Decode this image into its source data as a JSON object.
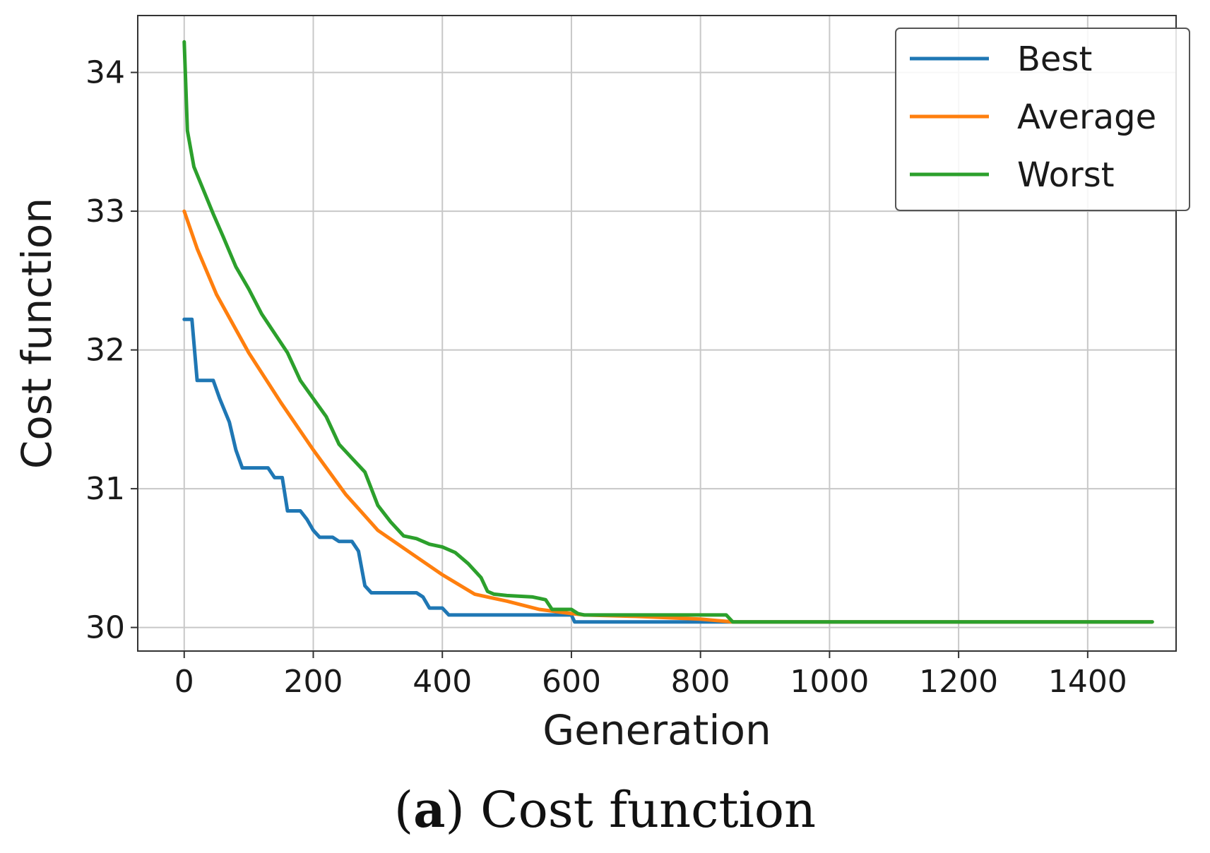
{
  "caption": {
    "open_paren": "(",
    "letter": "a",
    "rest": ") Cost function"
  },
  "chart_data": {
    "type": "line",
    "title": "",
    "xlabel": "Generation",
    "ylabel": "Cost function",
    "xlim": [
      -72,
      1537
    ],
    "ylim": [
      29.83,
      34.41
    ],
    "xticks": [
      0,
      200,
      400,
      600,
      800,
      1000,
      1200,
      1400
    ],
    "yticks": [
      30,
      31,
      32,
      33,
      34
    ],
    "grid": true,
    "legend_position": "top-right",
    "series": [
      {
        "name": "Best",
        "color": "#1f77b4",
        "x": [
          0,
          12,
          20,
          45,
          55,
          70,
          80,
          90,
          130,
          140,
          152,
          160,
          180,
          190,
          200,
          210,
          230,
          240,
          260,
          270,
          280,
          290,
          360,
          370,
          380,
          400,
          410,
          600,
          605,
          850,
          1500
        ],
        "y": [
          32.22,
          32.22,
          31.78,
          31.78,
          31.65,
          31.48,
          31.28,
          31.15,
          31.15,
          31.08,
          31.08,
          30.84,
          30.84,
          30.78,
          30.7,
          30.65,
          30.65,
          30.62,
          30.62,
          30.55,
          30.3,
          30.25,
          30.25,
          30.22,
          30.14,
          30.14,
          30.09,
          30.09,
          30.04,
          30.04,
          30.04
        ]
      },
      {
        "name": "Average",
        "color": "#ff7f0e",
        "x": [
          0,
          20,
          50,
          100,
          150,
          200,
          250,
          300,
          350,
          400,
          450,
          470,
          500,
          550,
          600,
          620,
          700,
          800,
          850,
          1500
        ],
        "y": [
          33.0,
          32.73,
          32.4,
          31.98,
          31.62,
          31.28,
          30.96,
          30.7,
          30.54,
          30.38,
          30.24,
          30.22,
          30.19,
          30.13,
          30.1,
          30.09,
          30.08,
          30.06,
          30.04,
          30.04
        ]
      },
      {
        "name": "Worst",
        "color": "#2ca02c",
        "x": [
          0,
          5,
          15,
          30,
          45,
          60,
          80,
          100,
          120,
          140,
          160,
          180,
          200,
          220,
          240,
          260,
          280,
          300,
          320,
          340,
          360,
          380,
          400,
          420,
          440,
          460,
          470,
          480,
          500,
          540,
          560,
          570,
          600,
          610,
          620,
          840,
          850,
          1500
        ],
        "y": [
          34.22,
          33.58,
          33.32,
          33.15,
          32.98,
          32.82,
          32.6,
          32.44,
          32.26,
          32.12,
          31.98,
          31.78,
          31.65,
          31.52,
          31.32,
          31.22,
          31.12,
          30.88,
          30.76,
          30.66,
          30.64,
          30.6,
          30.58,
          30.54,
          30.46,
          30.36,
          30.26,
          30.24,
          30.23,
          30.22,
          30.2,
          30.13,
          30.13,
          30.1,
          30.09,
          30.09,
          30.04,
          30.04
        ]
      }
    ]
  }
}
